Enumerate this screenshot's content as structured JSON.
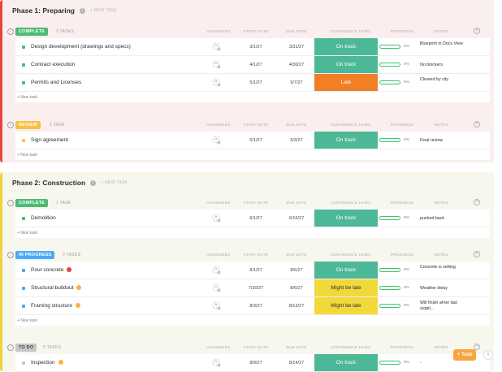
{
  "colors": {
    "complete": "#4cba74",
    "review": "#f6c242",
    "in_progress": "#4baaf8",
    "todo": "#c7c7c7",
    "on_track": "#4db897",
    "late": "#f07f26",
    "might_be_late": "#f2d83b",
    "blocked": "#e4453f",
    "warning": "#f7b33e"
  },
  "columns": {
    "assignees": "ASSIGNEES",
    "start": "START DATE",
    "due": "DUE DATE",
    "confidence": "CONFIDENCE LEVEL",
    "progress": "PROGRESS",
    "notes": "NOTES"
  },
  "phase1": {
    "title": "Phase 1: Preparing",
    "new_task": "+ NEW TASK",
    "complete": {
      "label": "COMPLETE",
      "count": "3 TASKS",
      "add": "+ New task",
      "rows": [
        {
          "name": "Design development (drawings and specs)",
          "start": "3/1/27",
          "due": "3/31/27",
          "conf": "On track",
          "pct": "0%",
          "note": "Blueprint in Docs View"
        },
        {
          "name": "Contract execution",
          "start": "4/1/27",
          "due": "4/30/27",
          "conf": "On track",
          "pct": "0%",
          "note": "No blockers"
        },
        {
          "name": "Permits and Licenses",
          "start": "5/1/27",
          "due": "5/7/27",
          "conf": "Late",
          "pct": "0%",
          "note": "Cleared by city"
        }
      ]
    },
    "review": {
      "label": "REVIEW",
      "count": "1 TASK",
      "add": "+ New task",
      "rows": [
        {
          "name": "Sign agreement",
          "start": "5/1/27",
          "due": "5/3/27",
          "conf": "On track",
          "pct": "0%",
          "note": "Final review"
        }
      ]
    }
  },
  "phase2": {
    "title": "Phase 2: Construction",
    "new_task": "+ NEW TASK",
    "complete": {
      "label": "COMPLETE",
      "count": "1 TASK",
      "add": "+ New task",
      "rows": [
        {
          "name": "Demolition",
          "start": "6/1/27",
          "due": "6/16/27",
          "conf": "On track",
          "pct": "0%",
          "note": "pushed back"
        }
      ]
    },
    "in_progress": {
      "label": "IN PROGRESS",
      "count": "3 TASKS",
      "add": "+ New task",
      "rows": [
        {
          "name": "Pour concrete",
          "start": "8/1/27",
          "due": "8/6/27",
          "conf": "On track",
          "pct": "0%",
          "note": "Concrete is setting"
        },
        {
          "name": "Structural buildout",
          "start": "7/30/27",
          "due": "8/6/27",
          "conf": "Might be late",
          "pct": "0%",
          "note": "Weather delay"
        },
        {
          "name": "Framing structure",
          "start": "8/3/27",
          "due": "8/13/27",
          "conf": "Might be late",
          "pct": "0%",
          "note": "Will finish af-ter last suppl..."
        }
      ]
    },
    "todo": {
      "label": "TO DO",
      "count": "5 TASKS",
      "rows": [
        {
          "name": "Inspection",
          "start": "8/9/27",
          "due": "8/14/27",
          "conf": "On track",
          "pct": "0%",
          "note": "-"
        }
      ]
    }
  },
  "floating": {
    "task_button": "+ Task"
  }
}
